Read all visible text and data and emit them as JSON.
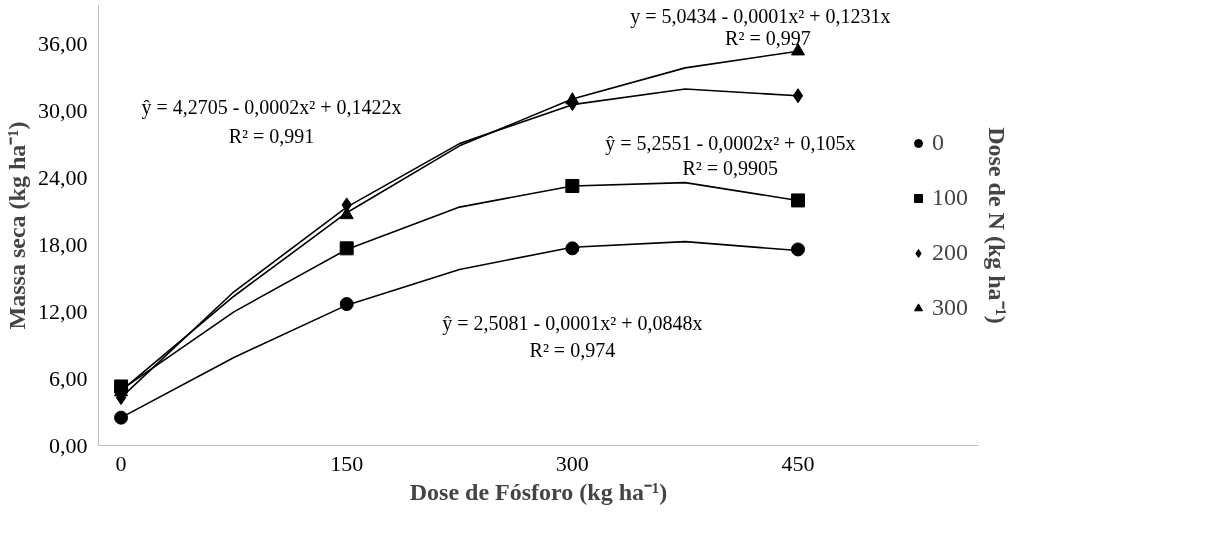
{
  "chart_data": {
    "type": "scatter",
    "xlabel": "Dose de Fósforo (kg ha⁻¹)",
    "ylabel": "Massa seca (kg ha⁻¹)",
    "legend_title": "Dose de N (kg ha⁻¹)",
    "x": [
      0,
      150,
      300,
      450
    ],
    "xlim": [
      -15,
      570
    ],
    "xticks": [
      0,
      150,
      300,
      450
    ],
    "ylim": [
      0,
      39.5
    ],
    "yticks": [
      {
        "value": 0,
        "label": "0,00"
      },
      {
        "value": 6,
        "label": "6,00"
      },
      {
        "value": 12,
        "label": "12,00"
      },
      {
        "value": 18,
        "label": "18,00"
      },
      {
        "value": 24,
        "label": "24,00"
      },
      {
        "value": 30,
        "label": "30,00"
      },
      {
        "value": 36,
        "label": "36,00"
      }
    ],
    "grid": false,
    "legend": "right",
    "series": [
      {
        "name": "0",
        "color": "#000000",
        "marker": "circle",
        "values": [
          2.5,
          12.7,
          17.7,
          17.6
        ]
      },
      {
        "name": "100",
        "color": "#000000",
        "marker": "square",
        "values": [
          5.3,
          17.7,
          23.3,
          22.0
        ]
      },
      {
        "name": "200",
        "color": "#000000",
        "marker": "diamond",
        "values": [
          4.3,
          21.6,
          30.7,
          31.4
        ]
      },
      {
        "name": "300",
        "color": "#000000",
        "marker": "triangle",
        "values": [
          4.8,
          20.7,
          31.0,
          35.4
        ]
      },
      {
        "type": "line",
        "color": "#000000",
        "x": [
          0,
          75,
          150,
          225,
          300,
          375,
          450
        ],
        "values": [
          2.5,
          7.9,
          12.6,
          15.8,
          17.8,
          18.3,
          17.5
        ]
      },
      {
        "type": "line",
        "color": "#000000",
        "x": [
          0,
          75,
          150,
          225,
          300,
          375,
          450
        ],
        "values": [
          5.0,
          12.0,
          17.6,
          21.4,
          23.3,
          23.6,
          22.0
        ]
      },
      {
        "type": "line",
        "color": "#000000",
        "x": [
          0,
          75,
          150,
          225,
          300,
          375,
          450
        ],
        "values": [
          4.3,
          13.8,
          21.4,
          27.1,
          30.6,
          32.0,
          31.4
        ]
      },
      {
        "type": "line",
        "color": "#000000",
        "x": [
          0,
          75,
          150,
          225,
          300,
          375,
          450
        ],
        "values": [
          4.9,
          13.4,
          20.9,
          26.9,
          31.1,
          33.9,
          35.4
        ]
      }
    ],
    "annotations": [
      "y = 5,0434 - 0,0001x² + 0,1231x",
      "R² = 0,997",
      "ŷ = 4,2705 - 0,0002x² + 0,1422x",
      "R² = 0,991",
      "ŷ = 5,2551 - 0,0002x² + 0,105x",
      "R² = 0,9905",
      "ŷ = 2,5081 - 0,0001x² + 0,0848x",
      "R² = 0,974"
    ]
  }
}
